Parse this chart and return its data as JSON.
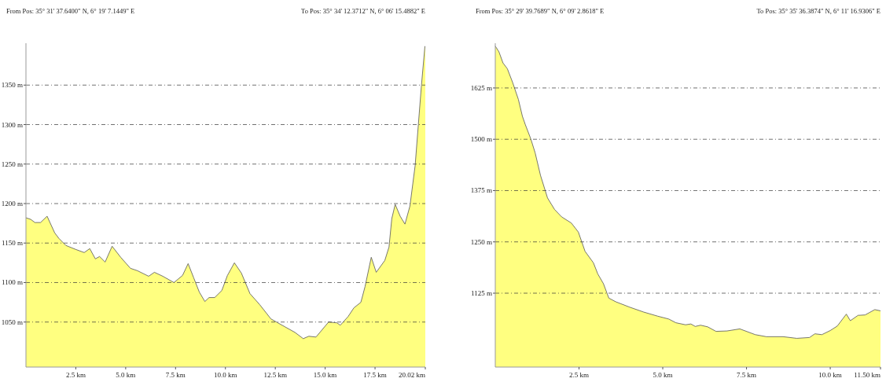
{
  "chart_data": [
    {
      "type": "area",
      "annotations": [
        "From Pos: 35° 31' 37.6400\" N, 6° 19' 7.1449\" E",
        "To Pos: 35° 34' 12.3712\" N, 6° 06' 15.4882\" E"
      ],
      "color": "#ffff80",
      "grid": "y",
      "x": [
        0,
        0.24,
        0.45,
        0.73,
        1.06,
        1.44,
        1.65,
        2.0,
        2.49,
        2.92,
        3.2,
        3.48,
        3.69,
        3.97,
        4.32,
        4.75,
        5.24,
        5.59,
        6.15,
        6.44,
        6.86,
        7.42,
        7.85,
        8.13,
        8.41,
        8.69,
        8.97,
        9.18,
        9.46,
        9.82,
        10.1,
        10.45,
        10.8,
        11.23,
        11.72,
        12.28,
        12.77,
        13.48,
        13.9,
        14.18,
        14.54,
        15.17,
        15.59,
        15.76,
        16.15,
        16.44,
        16.79,
        17.0,
        17.31,
        17.56,
        17.99,
        18.2,
        18.34,
        18.51,
        18.76,
        19.0,
        19.25,
        19.51,
        19.82,
        20.0,
        20.02
      ],
      "values": [
        1182,
        1180,
        1176,
        1176,
        1184,
        1163,
        1156,
        1147,
        1142,
        1138,
        1143,
        1130,
        1133,
        1126,
        1146,
        1132,
        1118,
        1115,
        1108,
        1113,
        1108,
        1100,
        1109,
        1124,
        1106,
        1088,
        1076,
        1081,
        1081,
        1090,
        1109,
        1125,
        1112,
        1086,
        1072,
        1054,
        1047,
        1037,
        1029,
        1032,
        1031,
        1050,
        1049,
        1046,
        1057,
        1068,
        1075,
        1095,
        1132,
        1113,
        1128,
        1145,
        1181,
        1199,
        1184,
        1174,
        1197,
        1248,
        1348,
        1399,
        1399
      ],
      "xlim": [
        0,
        20.02
      ],
      "ylim": [
        993,
        1403
      ],
      "xticks": [
        {
          "value": 2.5,
          "label": "2.5 km"
        },
        {
          "value": 5,
          "label": "5.0 km"
        },
        {
          "value": 7.5,
          "label": "7.5 km"
        },
        {
          "value": 10,
          "label": "10.0 km"
        },
        {
          "value": 12.5,
          "label": "12.5 km"
        },
        {
          "value": 15,
          "label": "15.0 km"
        },
        {
          "value": 17.5,
          "label": "17.5 km"
        },
        {
          "value": 20.02,
          "label": "20.02 km"
        }
      ],
      "yticks": [
        {
          "value": 1050,
          "label": "1050 m"
        },
        {
          "value": 1100,
          "label": "1100 m"
        },
        {
          "value": 1150,
          "label": "1150 m"
        },
        {
          "value": 1200,
          "label": "1200 m"
        },
        {
          "value": 1250,
          "label": "1250 m"
        },
        {
          "value": 1300,
          "label": "1300 m"
        },
        {
          "value": 1350,
          "label": "1350 m"
        }
      ]
    },
    {
      "type": "area",
      "annotations": [
        "From Pos: 35° 29' 39.7689\" N, 6° 09' 2.8618\" E",
        "To Pos: 35° 35' 36.3874\" N, 6° 11' 16.9306\" E"
      ],
      "color": "#ffff80",
      "grid": "y",
      "x": [
        0,
        0.11,
        0.23,
        0.36,
        0.52,
        0.69,
        0.81,
        0.9,
        1.06,
        1.19,
        1.35,
        1.56,
        1.77,
        1.98,
        2.27,
        2.48,
        2.68,
        2.93,
        3.06,
        3.23,
        3.39,
        3.6,
        4.01,
        4.43,
        4.85,
        5.18,
        5.39,
        5.68,
        5.84,
        5.97,
        6.13,
        6.34,
        6.59,
        6.92,
        7.3,
        7.76,
        8.09,
        8.59,
        9.0,
        9.38,
        9.54,
        9.75,
        10.0,
        10.21,
        10.48,
        10.6,
        10.83,
        11.04,
        11.33,
        11.5
      ],
      "values": [
        1727,
        1713,
        1686,
        1672,
        1638,
        1597,
        1556,
        1535,
        1501,
        1467,
        1412,
        1357,
        1329,
        1311,
        1296,
        1274,
        1227,
        1199,
        1172,
        1148,
        1113,
        1104,
        1091,
        1079,
        1069,
        1062,
        1053,
        1048,
        1050,
        1044,
        1047,
        1043,
        1032,
        1033,
        1038,
        1024,
        1019,
        1019,
        1015,
        1017,
        1026,
        1024,
        1034,
        1045,
        1074,
        1058,
        1071,
        1072,
        1085,
        1082
      ],
      "xlim": [
        0,
        11.5
      ],
      "ylim": [
        945,
        1734
      ],
      "xticks": [
        {
          "value": 2.5,
          "label": "2.5 km"
        },
        {
          "value": 5,
          "label": "5.0 km"
        },
        {
          "value": 7.5,
          "label": "7.5 km"
        },
        {
          "value": 10,
          "label": "10.0 km"
        },
        {
          "value": 11.5,
          "label": "11.50 km"
        }
      ],
      "yticks": [
        {
          "value": 1125,
          "label": "1125 m"
        },
        {
          "value": 1250,
          "label": "1250 m"
        },
        {
          "value": 1375,
          "label": "1375 m"
        },
        {
          "value": 1500,
          "label": "1500 m"
        },
        {
          "value": 1625,
          "label": "1625 m"
        }
      ]
    }
  ]
}
